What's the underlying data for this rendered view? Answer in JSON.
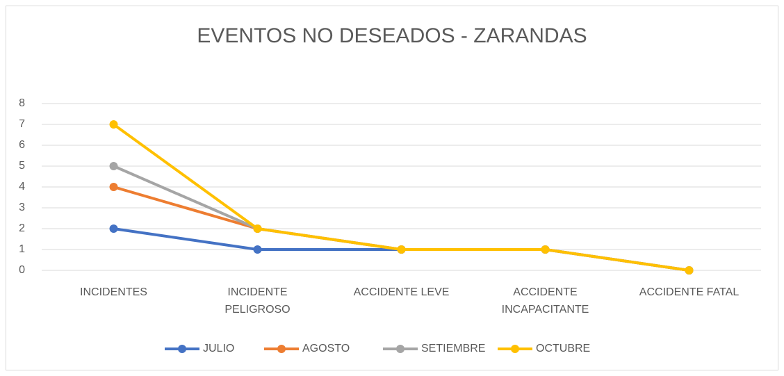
{
  "chart_data": {
    "type": "line",
    "title": "EVENTOS NO DESEADOS - ZARANDAS",
    "categories": [
      "INCIDENTES",
      "INCIDENTE PELIGROSO",
      "ACCIDENTE LEVE",
      "ACCIDENTE INCAPACITANTE",
      "ACCIDENTE FATAL"
    ],
    "series": [
      {
        "name": "JULIO",
        "color": "#4472c4",
        "values": [
          2,
          1,
          1,
          1,
          0
        ]
      },
      {
        "name": "AGOSTO",
        "color": "#ed7d31",
        "values": [
          4,
          2,
          1,
          1,
          0
        ]
      },
      {
        "name": "SETIEMBRE",
        "color": "#a5a5a5",
        "values": [
          5,
          2,
          1,
          1,
          0
        ]
      },
      {
        "name": "OCTUBRE",
        "color": "#ffc000",
        "values": [
          7,
          2,
          1,
          1,
          0
        ]
      }
    ],
    "ylim": [
      0,
      8
    ],
    "yticks": [
      0,
      1,
      2,
      3,
      4,
      5,
      6,
      7,
      8
    ],
    "grid": true,
    "legend": "bottom"
  }
}
